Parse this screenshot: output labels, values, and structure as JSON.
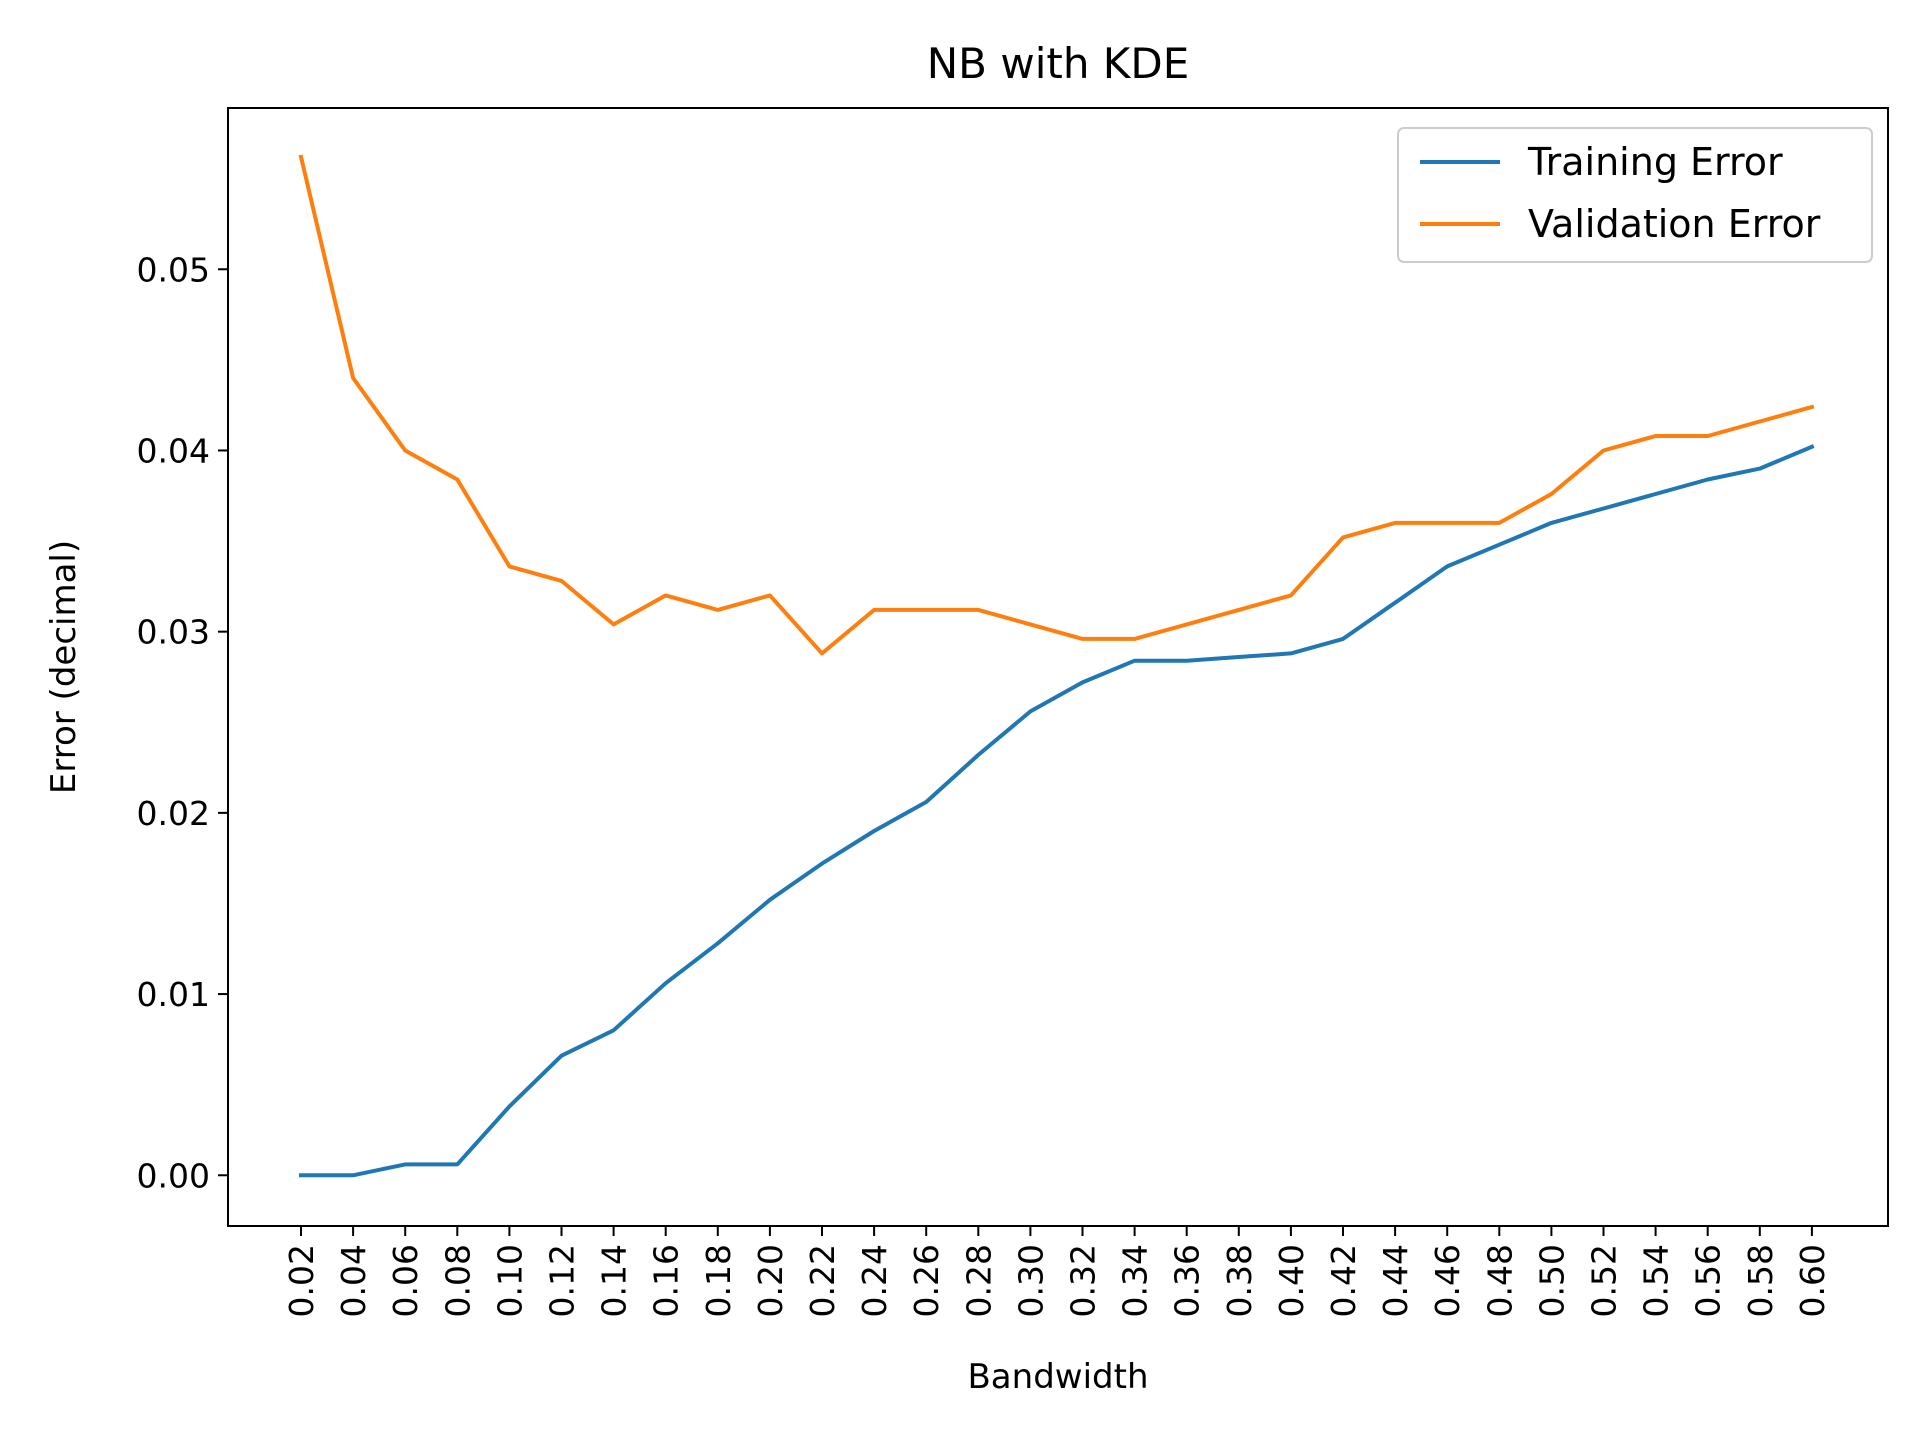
{
  "chart_data": {
    "type": "line",
    "title": "NB with KDE",
    "xlabel": "Bandwidth",
    "ylabel": "Error (decimal)",
    "categories": [
      "0.02",
      "0.04",
      "0.06",
      "0.08",
      "0.10",
      "0.12",
      "0.14",
      "0.16",
      "0.18",
      "0.20",
      "0.22",
      "0.24",
      "0.26",
      "0.28",
      "0.30",
      "0.32",
      "0.34",
      "0.36",
      "0.38",
      "0.40",
      "0.42",
      "0.44",
      "0.46",
      "0.48",
      "0.50",
      "0.52",
      "0.54",
      "0.56",
      "0.58",
      "0.60"
    ],
    "ylim": [
      -0.0028,
      0.0589
    ],
    "yticks": [
      0.0,
      0.01,
      0.02,
      0.03,
      0.04,
      0.05
    ],
    "ytick_labels": [
      "0.00",
      "0.01",
      "0.02",
      "0.03",
      "0.04",
      "0.05"
    ],
    "grid": false,
    "legend_position": "top-right",
    "series": [
      {
        "name": "Training Error",
        "color": "#1f77b4",
        "values": [
          0.0,
          0.0,
          0.0006,
          0.0006,
          0.0038,
          0.0066,
          0.008,
          0.0106,
          0.0128,
          0.0152,
          0.0172,
          0.019,
          0.0206,
          0.0232,
          0.0256,
          0.0272,
          0.0284,
          0.0284,
          0.0286,
          0.0288,
          0.0296,
          0.0316,
          0.0336,
          0.0348,
          0.036,
          0.0368,
          0.0376,
          0.0384,
          0.039,
          0.0402
        ]
      },
      {
        "name": "Validation Error",
        "color": "#ff7f0e",
        "values": [
          0.0562,
          0.044,
          0.04,
          0.0384,
          0.0336,
          0.0328,
          0.0304,
          0.032,
          0.0312,
          0.032,
          0.0288,
          0.0312,
          0.0312,
          0.0312,
          0.0304,
          0.0296,
          0.0296,
          0.0304,
          0.0312,
          0.032,
          0.0352,
          0.036,
          0.036,
          0.036,
          0.0376,
          0.04,
          0.0408,
          0.0408,
          0.0416,
          0.0424
        ]
      }
    ]
  }
}
